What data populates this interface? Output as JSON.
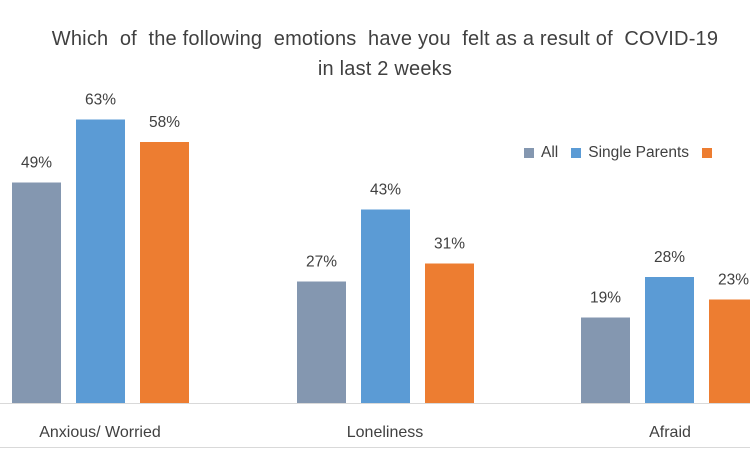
{
  "chart_data": {
    "type": "bar",
    "title_line1": "Which  of  the following  emotions  have you  felt as a result of  COVID-19",
    "title_line2": "in last 2 weeks",
    "categories": [
      "Anxious/ Worried",
      "Loneliness",
      "Afraid"
    ],
    "series": [
      {
        "name": "All",
        "values": [
          49,
          27,
          19
        ],
        "labels": [
          "49%",
          "27%",
          "19%"
        ],
        "color": "#8497b0"
      },
      {
        "name": "Single Parents",
        "values": [
          63,
          43,
          28
        ],
        "labels": [
          "63%",
          "43%",
          "28%"
        ],
        "color": "#5b9bd5"
      },
      {
        "name": "",
        "values": [
          58,
          31,
          23
        ],
        "labels": [
          "58%",
          "31%",
          "23%"
        ],
        "color": "#ed7d31"
      }
    ],
    "ylim": [
      0,
      70
    ],
    "grid": false,
    "legend_position": "right"
  }
}
